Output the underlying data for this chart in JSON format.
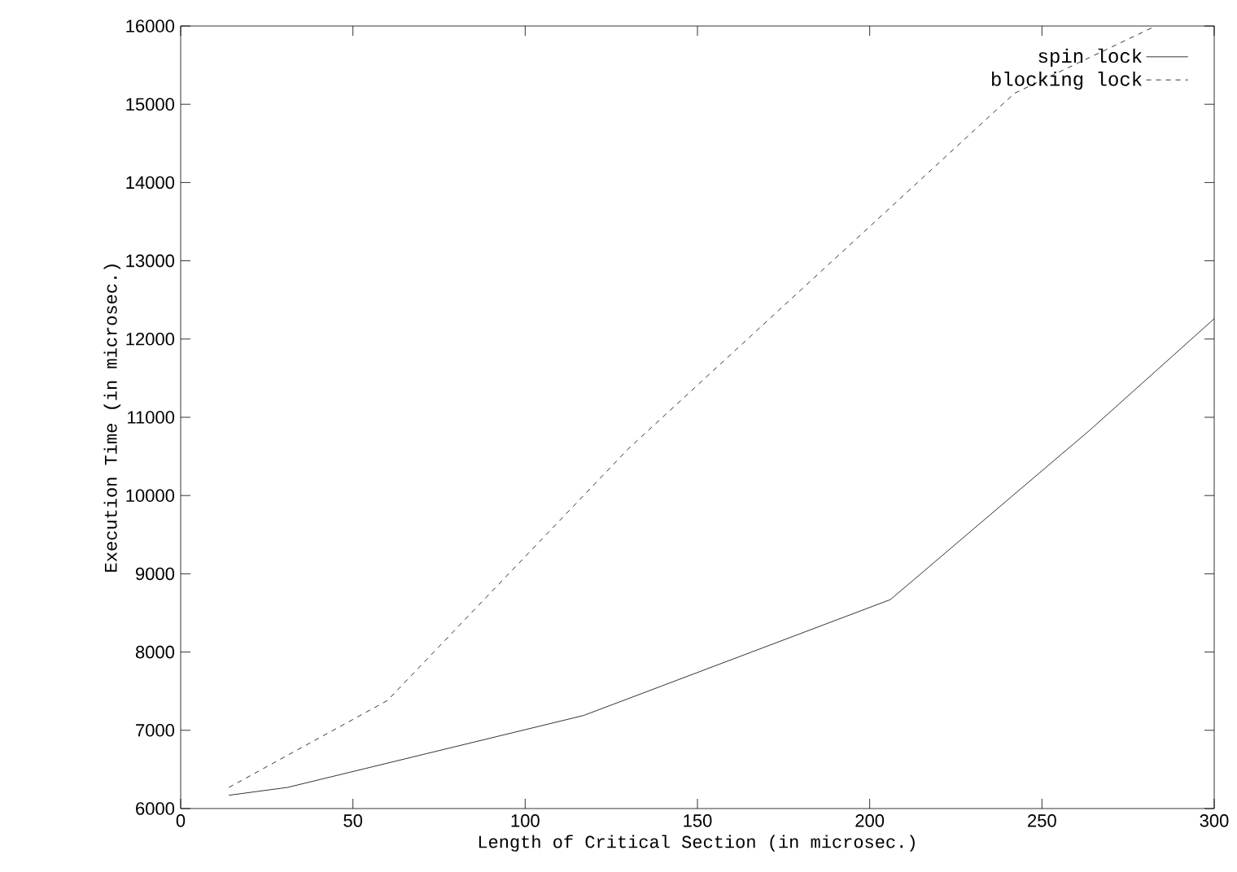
{
  "chart_data": {
    "type": "line",
    "xlabel": "Length of Critical Section (in microsec.)",
    "ylabel": "Execution Time (in microsec.)",
    "xlim": [
      0,
      300
    ],
    "ylim": [
      6000,
      16000
    ],
    "xticks": [
      0,
      50,
      100,
      150,
      200,
      250,
      300
    ],
    "yticks": [
      6000,
      7000,
      8000,
      9000,
      10000,
      11000,
      12000,
      13000,
      14000,
      15000,
      16000
    ],
    "legend": "top right",
    "grid": false,
    "series": [
      {
        "name": "spin lock",
        "color": "#000000",
        "line_style": "solid",
        "x": [
          14,
          31,
          117,
          206,
          264,
          300
        ],
        "values": [
          6170,
          6270,
          7190,
          8670,
          10840,
          12260
        ]
      },
      {
        "name": "blocking lock",
        "color": "#000000",
        "line_style": "dashed",
        "x": [
          14,
          60,
          130,
          205,
          242,
          283
        ],
        "values": [
          6270,
          7380,
          10600,
          13640,
          15140,
          16000
        ]
      }
    ]
  }
}
